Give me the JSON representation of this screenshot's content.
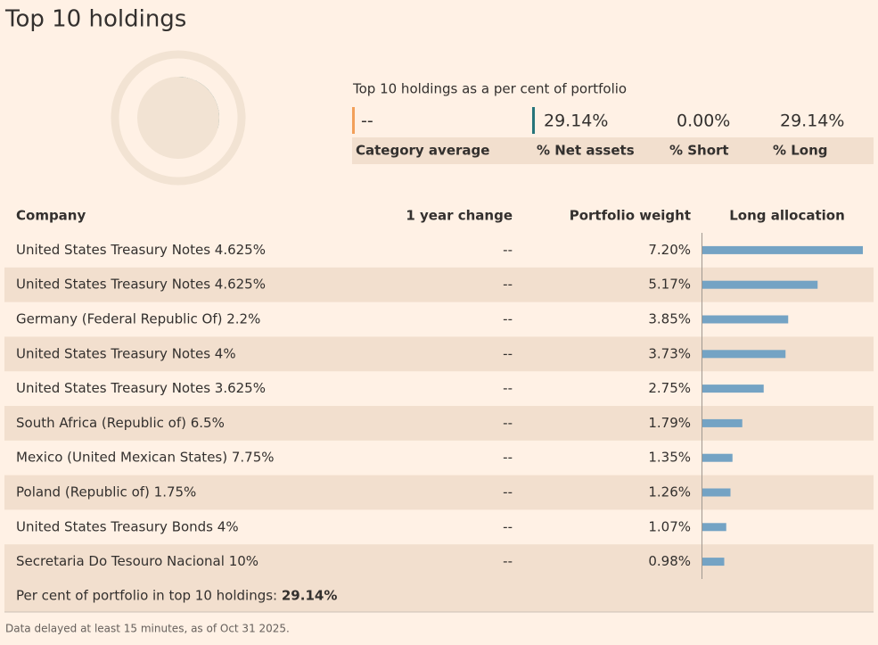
{
  "header": {
    "title": "Top 10 holdings"
  },
  "summary": {
    "caption": "Top 10 holdings as a per cent of portfolio",
    "items": [
      {
        "label": "Category average",
        "value_label": "--"
      },
      {
        "label": "% Net assets",
        "value": 29.14,
        "value_label": "29.14%"
      },
      {
        "label": "% Short",
        "value": 0,
        "value_label": "0.00%"
      },
      {
        "label": "% Long",
        "value": 29.14,
        "value_label": "29.14%"
      }
    ]
  },
  "table": {
    "columns": [
      "Company",
      "1 year change",
      "Portfolio weight",
      "Long allocation"
    ],
    "rows": [
      {
        "company": "United States Treasury Notes 4.625%",
        "change": "--",
        "weight": 7.2,
        "weight_label": "7.20%"
      },
      {
        "company": "United States Treasury Notes 4.625%",
        "change": "--",
        "weight": 5.17,
        "weight_label": "5.17%"
      },
      {
        "company": "Germany (Federal Republic Of) 2.2%",
        "change": "--",
        "weight": 3.85,
        "weight_label": "3.85%"
      },
      {
        "company": "United States Treasury Notes 4%",
        "change": "--",
        "weight": 3.73,
        "weight_label": "3.73%"
      },
      {
        "company": "United States Treasury Notes 3.625%",
        "change": "--",
        "weight": 2.75,
        "weight_label": "2.75%"
      },
      {
        "company": "South Africa (Republic of) 6.5%",
        "change": "--",
        "weight": 1.79,
        "weight_label": "1.79%"
      },
      {
        "company": "Mexico (United Mexican States) 7.75%",
        "change": "--",
        "weight": 1.35,
        "weight_label": "1.35%"
      },
      {
        "company": "Poland (Republic of) 1.75%",
        "change": "--",
        "weight": 1.26,
        "weight_label": "1.26%"
      },
      {
        "company": "United States Treasury Bonds 4%",
        "change": "--",
        "weight": 1.07,
        "weight_label": "1.07%"
      },
      {
        "company": "Secretaria Do Tesouro Nacional 10%",
        "change": "--",
        "weight": 0.98,
        "weight_label": "0.98%"
      }
    ],
    "footer": {
      "label": "Per cent of portfolio in top 10 holdings:",
      "value_label": "29.14%"
    }
  },
  "note": "Data delayed at least 15 minutes, as of Oct 31 2025."
}
